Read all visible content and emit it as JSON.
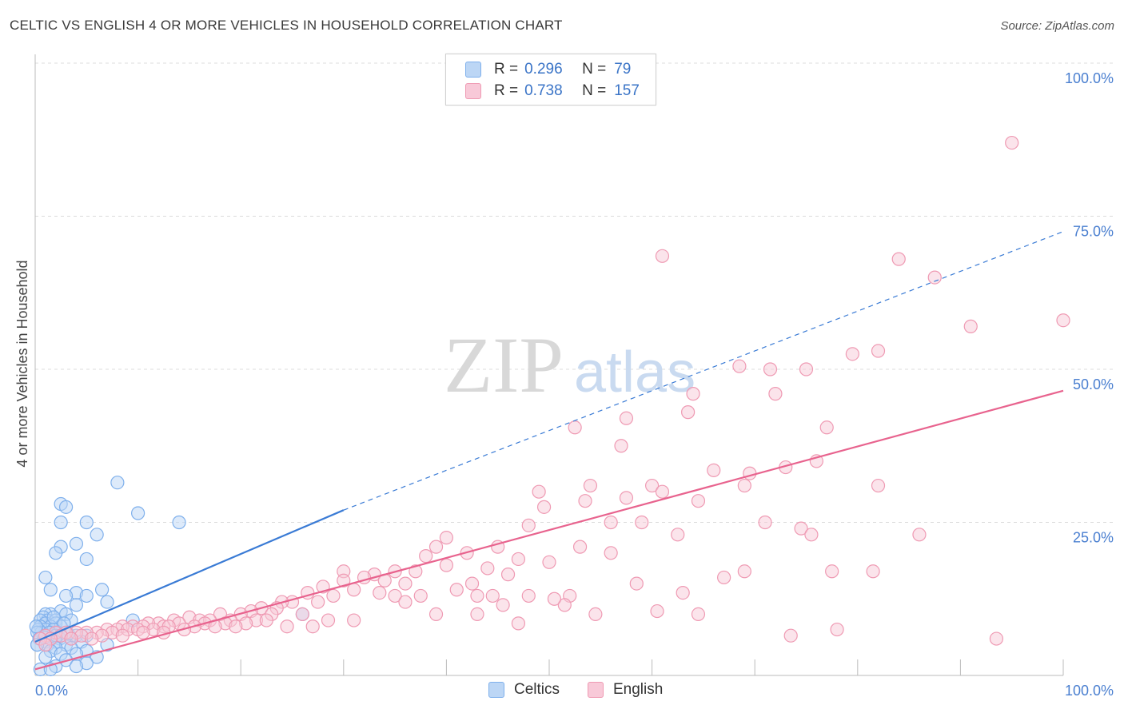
{
  "title": "CELTIC VS ENGLISH 4 OR MORE VEHICLES IN HOUSEHOLD CORRELATION CHART",
  "source": "Source: ZipAtlas.com",
  "watermark": {
    "zip": "ZIP",
    "atlas": "atlas"
  },
  "legend": {
    "rows": [
      {
        "r_label": "R =",
        "r_value": "0.296",
        "n_label": "N =",
        "n_value": "79",
        "color": "#7fb0ec",
        "fill": "#bcd6f5"
      },
      {
        "r_label": "R =",
        "r_value": "0.738",
        "n_label": "N =",
        "n_value": "157",
        "color": "#ef9ab3",
        "fill": "#f8c9d8"
      }
    ]
  },
  "bottom_legend": [
    {
      "label": "Celtics",
      "color": "#7fb0ec",
      "fill": "#bcd6f5"
    },
    {
      "label": "English",
      "color": "#ef9ab3",
      "fill": "#f8c9d8"
    }
  ],
  "chart_data": {
    "type": "scatter",
    "title": "CELTIC VS ENGLISH 4 OR MORE VEHICLES IN HOUSEHOLD CORRELATION CHART",
    "xlabel": "",
    "ylabel": "4 or more Vehicles in Household",
    "xlim": [
      0,
      100
    ],
    "ylim": [
      0,
      100
    ],
    "x_tick_labels": [
      {
        "value": 0,
        "label": "0.0%"
      },
      {
        "value": 100,
        "label": "100.0%"
      }
    ],
    "y_tick_labels": [
      {
        "value": 25,
        "label": "25.0%"
      },
      {
        "value": 50,
        "label": "50.0%"
      },
      {
        "value": 75,
        "label": "75.0%"
      },
      {
        "value": 100,
        "label": "100.0%"
      }
    ],
    "grid": true,
    "series": [
      {
        "name": "Celtics",
        "color": "#3a7bd5",
        "point_color": "#7fb0ec",
        "point_fill": "#bcd6f5",
        "trend": {
          "x": [
            0,
            30
          ],
          "y": [
            5.5,
            27.0
          ],
          "dashed_to_x": 100,
          "dashed_to_y": 72.5
        },
        "points": [
          [
            8,
            31.5
          ],
          [
            2.5,
            28
          ],
          [
            3,
            27.5
          ],
          [
            10,
            26.5
          ],
          [
            14,
            25
          ],
          [
            2.5,
            25
          ],
          [
            5,
            25
          ],
          [
            6,
            23
          ],
          [
            4,
            21.5
          ],
          [
            2.5,
            21
          ],
          [
            2,
            20
          ],
          [
            5,
            19
          ],
          [
            1,
            16
          ],
          [
            6.5,
            14
          ],
          [
            4,
            13.5
          ],
          [
            5,
            13
          ],
          [
            3,
            13
          ],
          [
            1.5,
            14
          ],
          [
            7,
            12
          ],
          [
            4,
            11.5
          ],
          [
            2.5,
            10.5
          ],
          [
            3,
            10
          ],
          [
            1.5,
            10
          ],
          [
            1,
            10
          ],
          [
            0.8,
            9.5
          ],
          [
            1.2,
            9
          ],
          [
            2,
            9
          ],
          [
            3.5,
            9
          ],
          [
            0.5,
            9
          ],
          [
            1,
            8.5
          ],
          [
            2,
            8.5
          ],
          [
            9.5,
            9
          ],
          [
            1.5,
            8
          ],
          [
            0.5,
            8
          ],
          [
            2.5,
            8
          ],
          [
            1,
            7.5
          ],
          [
            0.3,
            7.5
          ],
          [
            1.8,
            7.5
          ],
          [
            2.2,
            7
          ],
          [
            0.6,
            7
          ],
          [
            1.4,
            7
          ],
          [
            3,
            7
          ],
          [
            0.2,
            7
          ],
          [
            1,
            6.5
          ],
          [
            2,
            6.5
          ],
          [
            4,
            6.5
          ],
          [
            5,
            6.5
          ],
          [
            0.4,
            6
          ],
          [
            1.6,
            6
          ],
          [
            2.4,
            6
          ],
          [
            3.5,
            6
          ],
          [
            1,
            5.5
          ],
          [
            2,
            5.5
          ],
          [
            4.5,
            5.5
          ],
          [
            0.2,
            5
          ],
          [
            1.2,
            5
          ],
          [
            3,
            5
          ],
          [
            7,
            5
          ],
          [
            2,
            4.5
          ],
          [
            3.5,
            4.5
          ],
          [
            1.5,
            4
          ],
          [
            5,
            4
          ],
          [
            2.5,
            3.5
          ],
          [
            4,
            3.5
          ],
          [
            1,
            3
          ],
          [
            6,
            3
          ],
          [
            3,
            2.5
          ],
          [
            5,
            2
          ],
          [
            2,
            1.5
          ],
          [
            4,
            1.5
          ],
          [
            0.5,
            1
          ],
          [
            1.5,
            1
          ],
          [
            26,
            10
          ],
          [
            0.2,
            5
          ],
          [
            0.1,
            8
          ],
          [
            1.8,
            9.5
          ],
          [
            2.8,
            8.5
          ],
          [
            0.9,
            6.2
          ],
          [
            3.2,
            6.8
          ]
        ]
      },
      {
        "name": "English",
        "color": "#e8638e",
        "point_color": "#ef9ab3",
        "point_fill": "#f8c9d8",
        "trend": {
          "x": [
            0,
            100
          ],
          "y": [
            1.0,
            46.5
          ]
        },
        "points": [
          [
            95,
            87
          ],
          [
            61,
            68.5
          ],
          [
            84,
            68
          ],
          [
            87.5,
            65
          ],
          [
            100,
            58
          ],
          [
            91,
            57
          ],
          [
            82,
            53
          ],
          [
            79.5,
            52.5
          ],
          [
            68.5,
            50.5
          ],
          [
            75,
            50
          ],
          [
            71.5,
            50
          ],
          [
            64,
            46
          ],
          [
            72,
            46
          ],
          [
            63.5,
            43
          ],
          [
            57.5,
            42
          ],
          [
            52.5,
            40.5
          ],
          [
            77,
            40.5
          ],
          [
            57,
            37.5
          ],
          [
            76,
            35
          ],
          [
            73,
            34
          ],
          [
            66,
            33.5
          ],
          [
            69.5,
            33
          ],
          [
            82,
            31
          ],
          [
            69,
            31
          ],
          [
            60,
            31
          ],
          [
            54,
            31
          ],
          [
            49,
            30
          ],
          [
            61,
            30
          ],
          [
            57.5,
            29
          ],
          [
            64.5,
            28.5
          ],
          [
            53.5,
            28.5
          ],
          [
            49.5,
            27.5
          ],
          [
            71,
            25
          ],
          [
            59,
            25
          ],
          [
            56,
            25
          ],
          [
            48,
            24.5
          ],
          [
            74.5,
            24
          ],
          [
            62.5,
            23
          ],
          [
            75.5,
            23
          ],
          [
            40,
            22.5
          ],
          [
            45,
            21
          ],
          [
            39,
            21
          ],
          [
            53,
            21
          ],
          [
            42,
            20
          ],
          [
            56,
            20
          ],
          [
            38,
            19.5
          ],
          [
            47,
            19
          ],
          [
            50,
            18.5
          ],
          [
            40,
            18
          ],
          [
            44,
            17.5
          ],
          [
            35,
            17
          ],
          [
            30,
            17
          ],
          [
            37,
            17
          ],
          [
            46,
            16.5
          ],
          [
            33,
            16.5
          ],
          [
            32,
            16
          ],
          [
            34,
            15.5
          ],
          [
            36,
            15
          ],
          [
            30,
            15.5
          ],
          [
            42.5,
            15
          ],
          [
            58.5,
            15
          ],
          [
            67,
            16
          ],
          [
            69,
            17
          ],
          [
            77.5,
            17
          ],
          [
            41,
            14
          ],
          [
            28,
            14.5
          ],
          [
            31,
            14
          ],
          [
            33.5,
            13.5
          ],
          [
            26.5,
            13.5
          ],
          [
            35,
            13
          ],
          [
            43,
            13
          ],
          [
            52,
            13
          ],
          [
            44.5,
            13
          ],
          [
            48,
            13
          ],
          [
            29,
            13
          ],
          [
            25,
            12
          ],
          [
            27.5,
            12
          ],
          [
            24,
            12
          ],
          [
            22,
            11
          ],
          [
            51.5,
            11.5
          ],
          [
            45.5,
            11.5
          ],
          [
            23.5,
            11
          ],
          [
            21,
            10.5
          ],
          [
            18,
            10
          ],
          [
            20,
            10
          ],
          [
            23,
            10
          ],
          [
            26,
            10
          ],
          [
            60.5,
            10.5
          ],
          [
            64.5,
            10
          ],
          [
            15,
            9.5
          ],
          [
            16,
            9
          ],
          [
            17,
            9
          ],
          [
            19,
            9
          ],
          [
            21.5,
            9
          ],
          [
            13.5,
            9
          ],
          [
            22.5,
            9
          ],
          [
            12,
            8.5
          ],
          [
            14,
            8.5
          ],
          [
            16.5,
            8.5
          ],
          [
            18.5,
            8.5
          ],
          [
            20.5,
            8.5
          ],
          [
            11,
            8.5
          ],
          [
            9.5,
            8
          ],
          [
            10.5,
            8
          ],
          [
            12.5,
            8
          ],
          [
            13,
            8
          ],
          [
            15.5,
            8
          ],
          [
            17.5,
            8
          ],
          [
            19.5,
            8
          ],
          [
            24.5,
            8
          ],
          [
            27,
            8
          ],
          [
            8.5,
            8
          ],
          [
            7,
            7.5
          ],
          [
            8,
            7.5
          ],
          [
            9,
            7.5
          ],
          [
            10,
            7.5
          ],
          [
            11.5,
            7.5
          ],
          [
            14.5,
            7.5
          ],
          [
            6,
            7
          ],
          [
            7.5,
            7
          ],
          [
            5,
            7
          ],
          [
            4,
            7
          ],
          [
            3,
            7
          ],
          [
            2,
            7
          ],
          [
            6.5,
            6.5
          ],
          [
            8.5,
            6.5
          ],
          [
            10.5,
            7
          ],
          [
            12.5,
            7
          ],
          [
            1,
            6.5
          ],
          [
            2.5,
            6.5
          ],
          [
            4.5,
            6.5
          ],
          [
            5.5,
            6
          ],
          [
            1.5,
            6
          ],
          [
            3.5,
            6
          ],
          [
            0.5,
            6
          ],
          [
            1,
            5
          ],
          [
            43,
            10
          ],
          [
            47,
            8.5
          ],
          [
            54.5,
            10
          ],
          [
            73.5,
            6.5
          ],
          [
            78,
            7.5
          ],
          [
            93.5,
            6
          ],
          [
            81.5,
            17
          ],
          [
            86,
            23
          ],
          [
            63,
            13.5
          ],
          [
            50.5,
            12.5
          ],
          [
            39,
            10
          ],
          [
            36,
            12
          ],
          [
            31,
            9
          ],
          [
            28.5,
            9
          ],
          [
            37.5,
            13
          ]
        ]
      }
    ]
  }
}
